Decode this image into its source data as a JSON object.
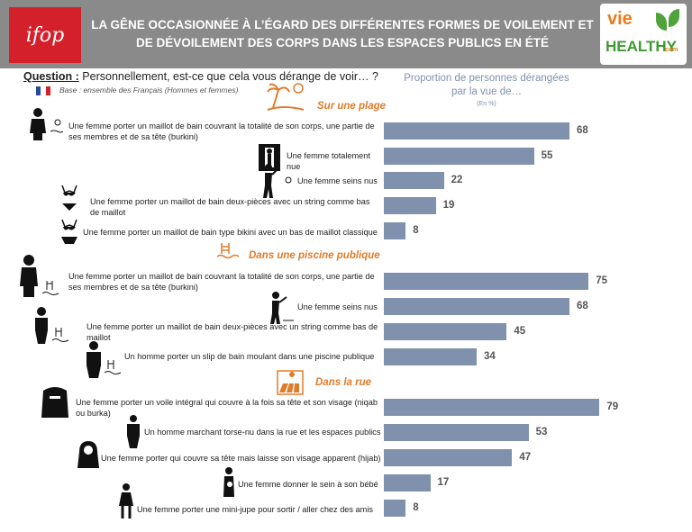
{
  "header": {
    "logo_left": "ifop",
    "title": "LA GÊNE OCCASIONNÉE À L’ÉGARD DES DIFFÉRENTES FORMES DE VOILEMENT ET DE DÉVOILEMENT DES CORPS DANS LES ESPACES PUBLICS EN ÉTÉ",
    "logo_right_top": "vie",
    "logo_right_bottom": "HEALTHY",
    "logo_right_suffix": ".com"
  },
  "question": {
    "label": "Question :",
    "text": " Personnellement, est-ce que cela vous dérange de voir… ?",
    "base": "Base : ensemble des Français (Hommes et femmes)"
  },
  "measure": {
    "title": "Proportion de personnes dérangées par la vue de…",
    "unit": "(En %)"
  },
  "colors": {
    "bar": "#7f91ad",
    "section": "#e07b2a",
    "header": "#8a8a8a",
    "ifop": "#d4202a"
  },
  "chart_data": {
    "type": "bar",
    "orientation": "horizontal",
    "xlim": [
      0,
      100
    ],
    "groups": [
      {
        "name": "Sur une plage",
        "categories": [
          "Une femme porter un maillot de bain couvrant la totalité de son corps, une partie de ses membres et de sa tête (burkini)",
          "Une femme totalement nue",
          "Une femme seins nus",
          "Une femme porter un maillot de bain deux-pièces avec un string comme bas de maillot",
          "Une femme porter un maillot de bain type bikini avec un bas de maillot classique"
        ],
        "values": [
          68,
          55,
          22,
          19,
          8
        ]
      },
      {
        "name": "Dans une piscine publique",
        "categories": [
          "Une femme porter un maillot de bain couvrant la totalité de son corps, une partie de ses membres et de sa tête (burkini)",
          "Une femme seins nus",
          "Une femme porter un maillot de bain deux-pièces avec un string comme bas de maillot",
          "Un homme porter un slip de bain moulant dans une piscine publique"
        ],
        "values": [
          75,
          68,
          45,
          34
        ]
      },
      {
        "name": "Dans la rue",
        "categories": [
          "Une femme porter un voile intégral qui couvre à la fois sa tête et son visage (niqab ou burka)",
          "Un homme marchant torse-nu dans la rue et les espaces publics",
          "Une femme porter qui couvre sa tête mais laisse son visage apparent (hijab)",
          "Une femme donner le sein à son bébé",
          "Une femme porter une mini-jupe pour sortir / aller chez des amis"
        ],
        "values": [
          79,
          53,
          47,
          17,
          8
        ]
      }
    ]
  }
}
